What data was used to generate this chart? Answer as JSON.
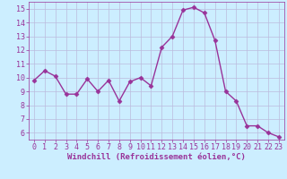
{
  "x": [
    0,
    1,
    2,
    3,
    4,
    5,
    6,
    7,
    8,
    9,
    10,
    11,
    12,
    13,
    14,
    15,
    16,
    17,
    18,
    19,
    20,
    21,
    22,
    23
  ],
  "y": [
    9.8,
    10.5,
    10.1,
    8.8,
    8.8,
    9.9,
    9.0,
    9.8,
    8.3,
    9.7,
    10.0,
    9.4,
    12.2,
    13.0,
    14.9,
    15.1,
    14.7,
    12.7,
    9.0,
    8.3,
    6.5,
    6.5,
    6.0,
    5.7
  ],
  "line_color": "#993399",
  "marker": "D",
  "markersize": 2.5,
  "linewidth": 1.0,
  "bg_color": "#cceeff",
  "grid_color": "#bbbbdd",
  "xlabel": "Windchill (Refroidissement éolien,°C)",
  "xlabel_fontsize": 6.5,
  "ylabel_ticks": [
    6,
    7,
    8,
    9,
    10,
    11,
    12,
    13,
    14,
    15
  ],
  "xlim": [
    -0.5,
    23.5
  ],
  "ylim": [
    5.5,
    15.5
  ],
  "tick_fontsize": 6.0
}
